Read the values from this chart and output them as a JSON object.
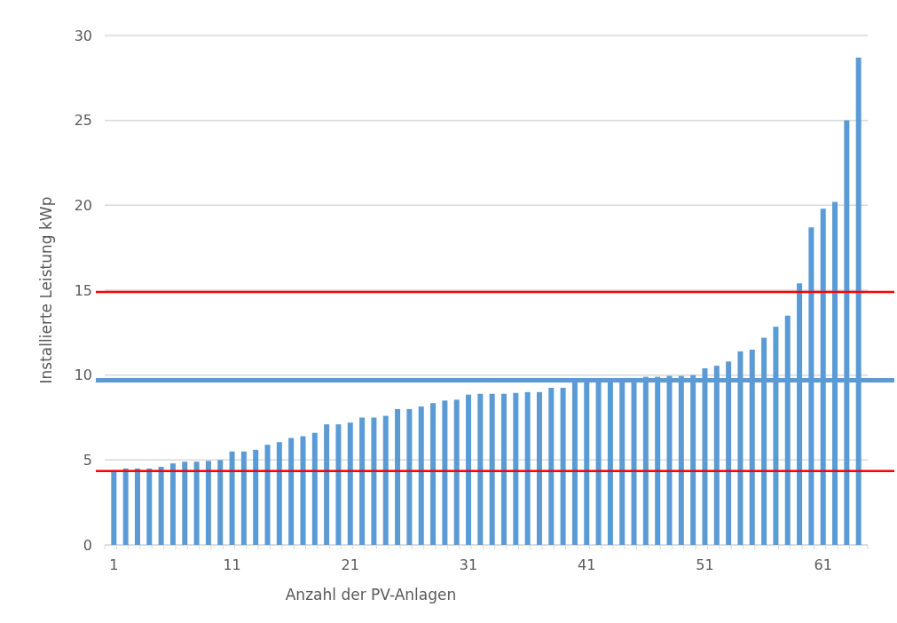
{
  "chart_data": {
    "type": "bar",
    "xlabel": "Anzahl der PV-Anlagen",
    "ylabel": "Installierte Leistung kWp",
    "categories": [
      "1",
      null,
      null,
      null,
      null,
      null,
      null,
      null,
      null,
      null,
      "11",
      null,
      null,
      null,
      null,
      null,
      null,
      null,
      null,
      null,
      "21",
      null,
      null,
      null,
      null,
      null,
      null,
      null,
      null,
      null,
      "31",
      null,
      null,
      null,
      null,
      null,
      null,
      null,
      null,
      null,
      "41",
      null,
      null,
      null,
      null,
      null,
      null,
      null,
      null,
      null,
      "51",
      null,
      null,
      null,
      null,
      null,
      null,
      null,
      null,
      null,
      "61",
      null,
      null,
      null
    ],
    "values": [
      4.4,
      4.5,
      4.5,
      4.5,
      4.6,
      4.8,
      4.9,
      4.9,
      4.95,
      5.0,
      5.5,
      5.5,
      5.6,
      5.9,
      6.05,
      6.3,
      6.4,
      6.6,
      7.1,
      7.1,
      7.2,
      7.5,
      7.5,
      7.6,
      8.0,
      8.0,
      8.15,
      8.35,
      8.5,
      8.55,
      8.85,
      8.9,
      8.9,
      8.9,
      8.95,
      9.0,
      9.0,
      9.25,
      9.25,
      9.7,
      9.7,
      9.7,
      9.7,
      9.7,
      9.7,
      9.9,
      9.9,
      9.95,
      9.95,
      10.0,
      10.4,
      10.55,
      10.8,
      11.4,
      11.5,
      12.2,
      12.85,
      13.5,
      15.4,
      18.7,
      19.8,
      20.2,
      25.0,
      28.7
    ],
    "color": "#5b9bd5",
    "ylim": [
      0,
      30
    ],
    "yticks": [
      0,
      5,
      10,
      15,
      20,
      25,
      30
    ],
    "grid": "y",
    "ref_lines": [
      {
        "axis": "y",
        "value": 4.35,
        "color": "#ff0000"
      },
      {
        "axis": "y",
        "value": 14.9,
        "color": "#ff0000"
      },
      {
        "axis": "y",
        "value": 9.7,
        "color": "#5b9bd5"
      }
    ]
  }
}
